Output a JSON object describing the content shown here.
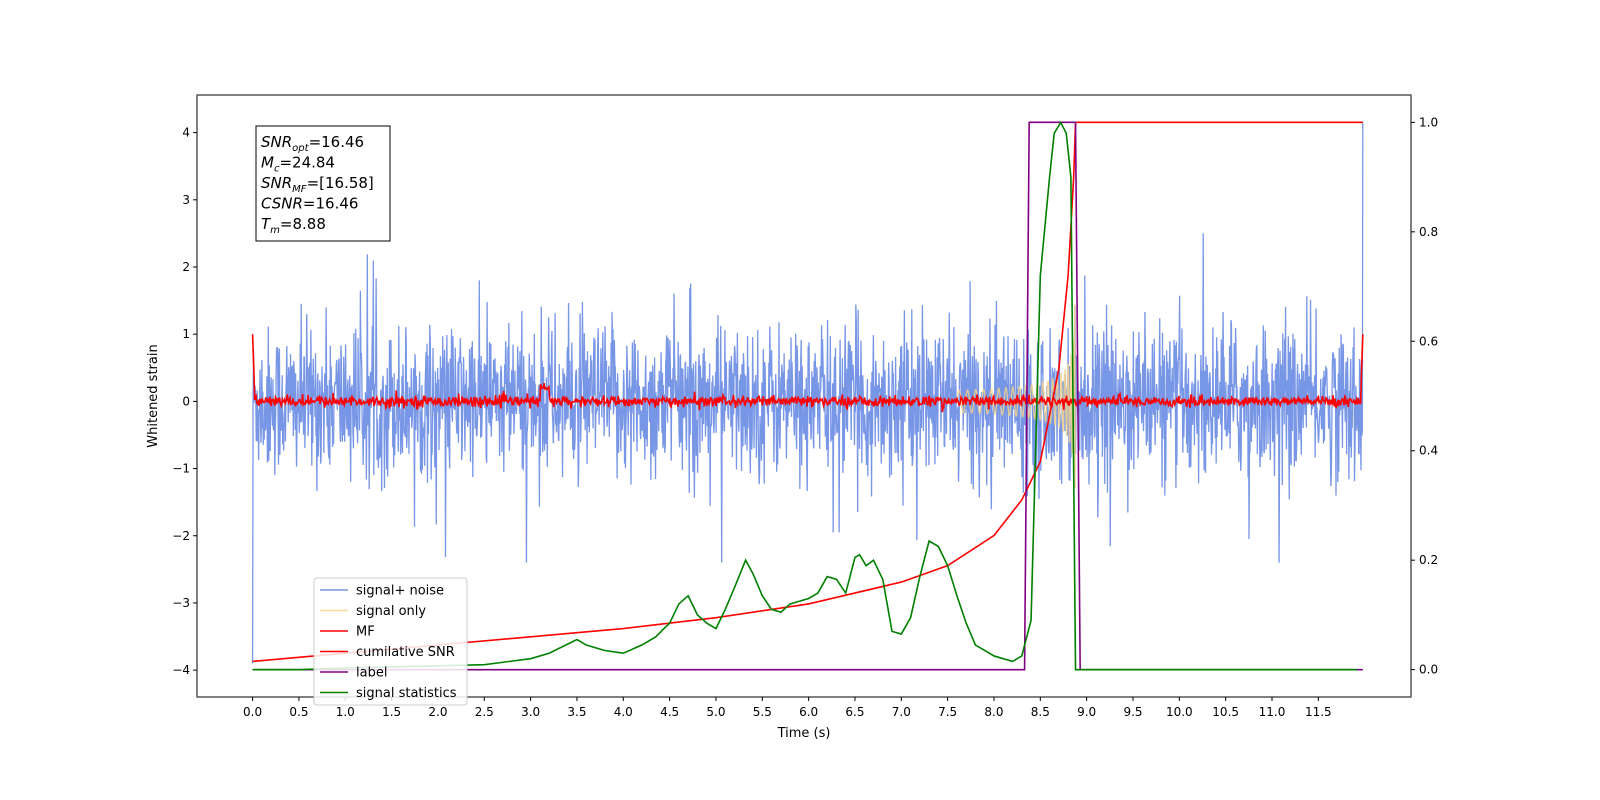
{
  "chart_data": {
    "type": "line",
    "xlabel": "Time (s)",
    "ylabel": "Whitened strain",
    "xlim": [
      -0.6,
      12.5
    ],
    "ylim": [
      -4.4,
      4.56
    ],
    "ylim_right": [
      -0.05,
      1.05
    ],
    "x_ticks": [
      "0.0",
      "0.5",
      "1.0",
      "1.5",
      "2.0",
      "2.5",
      "3.0",
      "3.5",
      "4.0",
      "4.5",
      "5.0",
      "5.5",
      "6.0",
      "6.5",
      "7.0",
      "7.5",
      "8.0",
      "8.5",
      "9.0",
      "9.5",
      "10.0",
      "10.5",
      "11.0",
      "11.5"
    ],
    "y_ticks_left": [
      "4",
      "3",
      "2",
      "1",
      "0",
      "−1",
      "−2",
      "−3",
      "−4"
    ],
    "y_ticks_right": [
      "1.0",
      "0.8",
      "0.6",
      "0.4",
      "0.2",
      "0.0"
    ],
    "grid": false,
    "legend_position": "lower-left",
    "annotation": {
      "lines": [
        {
          "sym": "SNR",
          "sub": "opt",
          "value": "=16.46"
        },
        {
          "sym": "M",
          "sub": "c",
          "value": "=24.84"
        },
        {
          "sym": "SNR",
          "sub": "MF",
          "value": "=[16.58]"
        },
        {
          "sym": "CSNR",
          "sub": "",
          "value": "=16.46"
        },
        {
          "sym": "T",
          "sub": "m",
          "value": "=8.88"
        }
      ]
    },
    "series": [
      {
        "name": "signal+ noise",
        "color": "#7896e6",
        "axis": "left",
        "kind": "noise",
        "x_range": [
          0,
          11.98
        ],
        "std": 0.55,
        "spike_max": 2.5
      },
      {
        "name": "signal only",
        "color": "#f5d38a",
        "axis": "left",
        "kind": "chirp",
        "x_range": [
          7.6,
          8.88
        ],
        "peak_amplitude": 1.8
      },
      {
        "name": "MF",
        "color": "#ff0000",
        "axis": "left",
        "kind": "mf",
        "x_range": [
          0,
          11.98
        ],
        "start_value": 1.0,
        "end_value": 1.0,
        "noise_level": 0.04
      },
      {
        "name": "cumilative SNR",
        "color": "#ff0000",
        "axis": "right",
        "x": [
          0,
          1,
          2,
          3,
          4,
          5,
          6,
          7,
          7.5,
          8,
          8.3,
          8.5,
          8.7,
          8.8,
          8.86,
          8.88,
          11.98
        ],
        "y": [
          0.015,
          0.03,
          0.045,
          0.06,
          0.075,
          0.095,
          0.12,
          0.16,
          0.19,
          0.245,
          0.31,
          0.38,
          0.55,
          0.72,
          0.9,
          1.0,
          1.0
        ]
      },
      {
        "name": "label",
        "color": "#800080",
        "axis": "right",
        "x": [
          0,
          8.33,
          8.38,
          8.88,
          8.93,
          11.98
        ],
        "y": [
          0,
          0,
          1,
          1,
          0,
          0
        ]
      },
      {
        "name": "signal statistics",
        "color": "#008000",
        "axis": "right",
        "x": [
          0,
          0.5,
          1,
          1.5,
          2,
          2.5,
          3,
          3.2,
          3.5,
          3.6,
          3.8,
          4,
          4.2,
          4.35,
          4.5,
          4.6,
          4.7,
          4.8,
          4.9,
          5.0,
          5.1,
          5.2,
          5.32,
          5.4,
          5.5,
          5.6,
          5.7,
          5.8,
          6.0,
          6.1,
          6.2,
          6.3,
          6.4,
          6.5,
          6.55,
          6.62,
          6.7,
          6.8,
          6.9,
          7.0,
          7.1,
          7.2,
          7.3,
          7.4,
          7.5,
          7.6,
          7.7,
          7.8,
          7.9,
          8.0,
          8.1,
          8.2,
          8.3,
          8.4,
          8.5,
          8.6,
          8.65,
          8.72,
          8.78,
          8.83,
          8.88,
          8.95,
          11.92
        ],
        "y": [
          0,
          0,
          0.003,
          0.005,
          0.007,
          0.009,
          0.02,
          0.03,
          0.055,
          0.045,
          0.035,
          0.03,
          0.045,
          0.06,
          0.085,
          0.12,
          0.135,
          0.1,
          0.085,
          0.075,
          0.11,
          0.15,
          0.2,
          0.175,
          0.135,
          0.11,
          0.105,
          0.12,
          0.13,
          0.14,
          0.17,
          0.165,
          0.14,
          0.205,
          0.21,
          0.19,
          0.2,
          0.165,
          0.07,
          0.065,
          0.095,
          0.17,
          0.235,
          0.225,
          0.19,
          0.135,
          0.085,
          0.045,
          0.035,
          0.025,
          0.02,
          0.015,
          0.025,
          0.09,
          0.72,
          0.9,
          0.98,
          1.0,
          0.98,
          0.9,
          0.0,
          0.0,
          0.0
        ]
      }
    ]
  }
}
